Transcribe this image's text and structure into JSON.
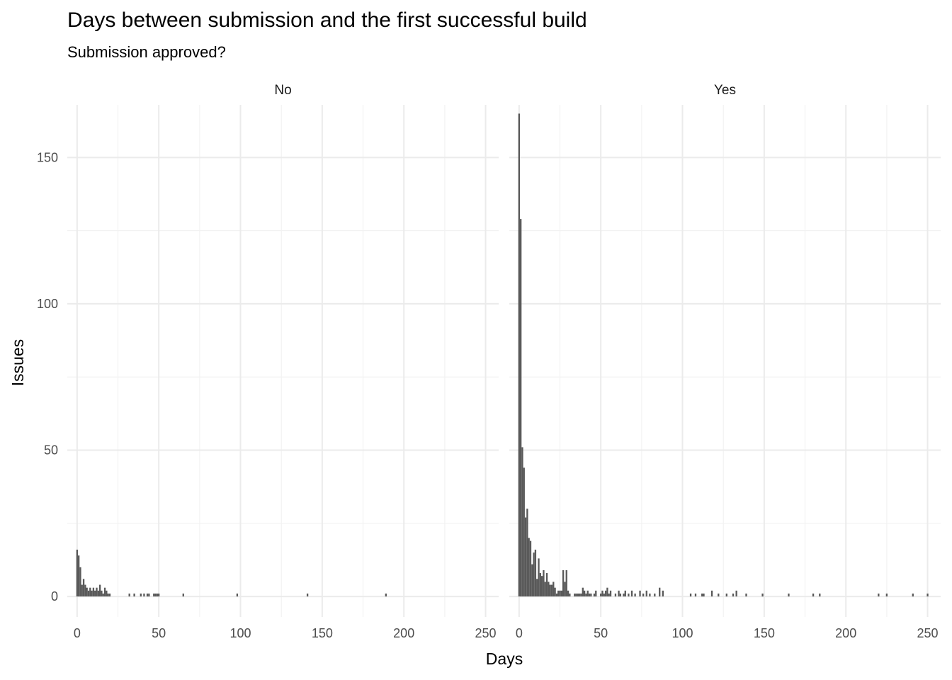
{
  "chart_data": {
    "type": "bar",
    "title": "Days between submission and the first successful build",
    "subtitle": "Submission approved?",
    "xlabel": "Days",
    "ylabel": "Issues",
    "xlim": [
      -6,
      258
    ],
    "ylim": [
      -7,
      168
    ],
    "x_ticks": [
      0,
      50,
      100,
      150,
      200,
      250
    ],
    "y_ticks": [
      0,
      50,
      100,
      150
    ],
    "bin_width": 1,
    "grid": true,
    "bar_color": "#595959",
    "panels": [
      {
        "label": "No",
        "bins": [
          {
            "x": 0,
            "y": 16
          },
          {
            "x": 1,
            "y": 14
          },
          {
            "x": 2,
            "y": 10
          },
          {
            "x": 3,
            "y": 4
          },
          {
            "x": 4,
            "y": 6
          },
          {
            "x": 5,
            "y": 4
          },
          {
            "x": 6,
            "y": 3
          },
          {
            "x": 7,
            "y": 2
          },
          {
            "x": 8,
            "y": 3
          },
          {
            "x": 9,
            "y": 2
          },
          {
            "x": 10,
            "y": 3
          },
          {
            "x": 11,
            "y": 2
          },
          {
            "x": 12,
            "y": 3
          },
          {
            "x": 13,
            "y": 2
          },
          {
            "x": 14,
            "y": 4
          },
          {
            "x": 15,
            "y": 2
          },
          {
            "x": 16,
            "y": 1
          },
          {
            "x": 17,
            "y": 3
          },
          {
            "x": 18,
            "y": 2
          },
          {
            "x": 19,
            "y": 1
          },
          {
            "x": 20,
            "y": 1
          },
          {
            "x": 32,
            "y": 1
          },
          {
            "x": 35,
            "y": 1
          },
          {
            "x": 39,
            "y": 1
          },
          {
            "x": 41,
            "y": 1
          },
          {
            "x": 43,
            "y": 1
          },
          {
            "x": 44,
            "y": 1
          },
          {
            "x": 47,
            "y": 1
          },
          {
            "x": 48,
            "y": 1
          },
          {
            "x": 49,
            "y": 1
          },
          {
            "x": 50,
            "y": 1
          },
          {
            "x": 65,
            "y": 1
          },
          {
            "x": 98,
            "y": 1
          },
          {
            "x": 141,
            "y": 1
          },
          {
            "x": 189,
            "y": 1
          }
        ]
      },
      {
        "label": "Yes",
        "bins": [
          {
            "x": 0,
            "y": 165
          },
          {
            "x": 1,
            "y": 129
          },
          {
            "x": 2,
            "y": 51
          },
          {
            "x": 3,
            "y": 44
          },
          {
            "x": 4,
            "y": 27
          },
          {
            "x": 5,
            "y": 30
          },
          {
            "x": 6,
            "y": 20
          },
          {
            "x": 7,
            "y": 19
          },
          {
            "x": 8,
            "y": 11
          },
          {
            "x": 9,
            "y": 15
          },
          {
            "x": 10,
            "y": 16
          },
          {
            "x": 11,
            "y": 6
          },
          {
            "x": 12,
            "y": 13
          },
          {
            "x": 13,
            "y": 8
          },
          {
            "x": 14,
            "y": 7
          },
          {
            "x": 15,
            "y": 9
          },
          {
            "x": 16,
            "y": 5
          },
          {
            "x": 17,
            "y": 8
          },
          {
            "x": 18,
            "y": 5
          },
          {
            "x": 19,
            "y": 4
          },
          {
            "x": 20,
            "y": 4
          },
          {
            "x": 21,
            "y": 5
          },
          {
            "x": 22,
            "y": 3
          },
          {
            "x": 23,
            "y": 1
          },
          {
            "x": 24,
            "y": 2
          },
          {
            "x": 25,
            "y": 2
          },
          {
            "x": 26,
            "y": 2
          },
          {
            "x": 27,
            "y": 9
          },
          {
            "x": 28,
            "y": 5
          },
          {
            "x": 29,
            "y": 9
          },
          {
            "x": 30,
            "y": 2
          },
          {
            "x": 31,
            "y": 1
          },
          {
            "x": 34,
            "y": 1
          },
          {
            "x": 35,
            "y": 1
          },
          {
            "x": 36,
            "y": 1
          },
          {
            "x": 37,
            "y": 1
          },
          {
            "x": 38,
            "y": 1
          },
          {
            "x": 39,
            "y": 3
          },
          {
            "x": 40,
            "y": 2
          },
          {
            "x": 41,
            "y": 1
          },
          {
            "x": 42,
            "y": 2
          },
          {
            "x": 43,
            "y": 1
          },
          {
            "x": 44,
            "y": 1
          },
          {
            "x": 46,
            "y": 1
          },
          {
            "x": 47,
            "y": 2
          },
          {
            "x": 50,
            "y": 1
          },
          {
            "x": 51,
            "y": 2
          },
          {
            "x": 52,
            "y": 1
          },
          {
            "x": 53,
            "y": 2
          },
          {
            "x": 54,
            "y": 3
          },
          {
            "x": 55,
            "y": 1
          },
          {
            "x": 56,
            "y": 2
          },
          {
            "x": 59,
            "y": 1
          },
          {
            "x": 61,
            "y": 2
          },
          {
            "x": 62,
            "y": 1
          },
          {
            "x": 64,
            "y": 1
          },
          {
            "x": 65,
            "y": 2
          },
          {
            "x": 67,
            "y": 1
          },
          {
            "x": 69,
            "y": 2
          },
          {
            "x": 71,
            "y": 1
          },
          {
            "x": 74,
            "y": 2
          },
          {
            "x": 76,
            "y": 1
          },
          {
            "x": 78,
            "y": 2
          },
          {
            "x": 80,
            "y": 1
          },
          {
            "x": 83,
            "y": 1
          },
          {
            "x": 86,
            "y": 3
          },
          {
            "x": 88,
            "y": 2
          },
          {
            "x": 105,
            "y": 1
          },
          {
            "x": 108,
            "y": 1
          },
          {
            "x": 112,
            "y": 1
          },
          {
            "x": 113,
            "y": 1
          },
          {
            "x": 118,
            "y": 2
          },
          {
            "x": 122,
            "y": 1
          },
          {
            "x": 127,
            "y": 1
          },
          {
            "x": 131,
            "y": 1
          },
          {
            "x": 133,
            "y": 2
          },
          {
            "x": 139,
            "y": 1
          },
          {
            "x": 149,
            "y": 1
          },
          {
            "x": 165,
            "y": 1
          },
          {
            "x": 180,
            "y": 1
          },
          {
            "x": 184,
            "y": 1
          },
          {
            "x": 220,
            "y": 1
          },
          {
            "x": 225,
            "y": 1
          },
          {
            "x": 241,
            "y": 1
          },
          {
            "x": 250,
            "y": 1
          }
        ]
      }
    ]
  }
}
